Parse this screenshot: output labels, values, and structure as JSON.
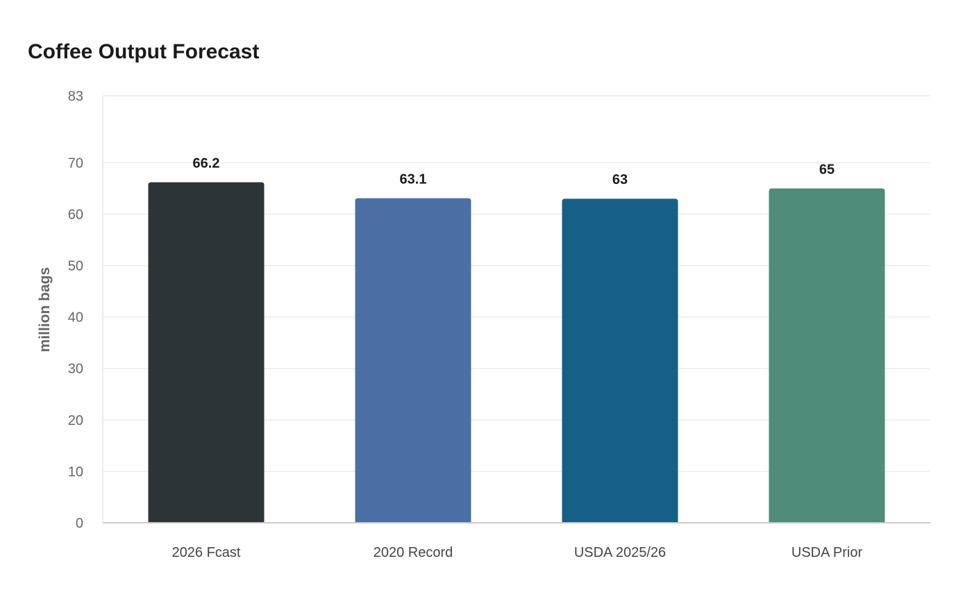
{
  "chart_data": {
    "type": "bar",
    "title": "Coffee Output Forecast",
    "ylabel": "million bags",
    "xlabel": "",
    "categories": [
      "2026 Fcast",
      "2020 Record",
      "USDA 2025/26",
      "USDA Prior"
    ],
    "values": [
      66.2,
      63.1,
      63,
      65
    ],
    "value_labels": [
      "66.2",
      "63.1",
      "63",
      "65"
    ],
    "colors": [
      "#2d3436",
      "#4a6fa5",
      "#166088",
      "#4f8c7a"
    ],
    "ylim": [
      0,
      83
    ],
    "yticks": [
      0,
      10,
      20,
      30,
      40,
      50,
      60,
      70,
      83
    ],
    "grid": true,
    "legend": "none"
  }
}
